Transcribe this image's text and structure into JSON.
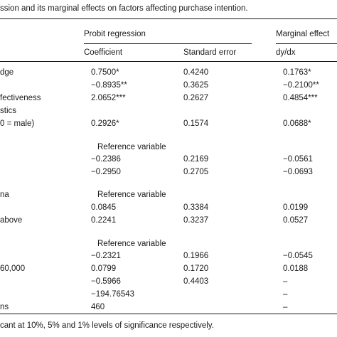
{
  "caption": "ssion and its marginal effects on factors affecting purchase intention.",
  "header": {
    "group_probit": "Probit regression",
    "group_marginal": "Marginal effect",
    "col_coefficient": "Coefficient",
    "col_std_error": "Standard error",
    "col_dydx": "dy/dx"
  },
  "rows": [
    {
      "label": "dge",
      "coef": "0.7500*",
      "se": "0.4240",
      "me": "0.1763*"
    },
    {
      "label": "",
      "coef": "−0.8935**",
      "se": "0.3625",
      "me": "−0.2100**"
    },
    {
      "label": "fectiveness",
      "coef": "2.0652***",
      "se": "0.2627",
      "me": "0.4854***"
    },
    {
      "label": "stics",
      "coef": "",
      "se": "",
      "me": ""
    },
    {
      "label": "0 = male)",
      "coef": "0.2926*",
      "se": "0.1574",
      "me": "0.0688*"
    },
    {
      "label": "",
      "ref": "Reference variable"
    },
    {
      "label": "",
      "coef": "−0.2386",
      "se": "0.2169",
      "me": "−0.0561"
    },
    {
      "label": "",
      "coef": "−0.2950",
      "se": "0.2705",
      "me": "−0.0693"
    },
    {
      "label": "na",
      "ref": "Reference variable"
    },
    {
      "label": "",
      "coef": "0.0845",
      "se": "0.3384",
      "me": "0.0199"
    },
    {
      "label": "above",
      "coef": "0.2241",
      "se": "0.3237",
      "me": "0.0527"
    },
    {
      "label": "",
      "ref": "Reference variable"
    },
    {
      "label": "",
      "coef": "−0.2321",
      "se": "0.1966",
      "me": "−0.0545"
    },
    {
      "label": "60,000",
      "coef": "0.0799",
      "se": "0.1720",
      "me": "0.0188"
    },
    {
      "label": "",
      "coef": "−0.5966",
      "se": "0.4403",
      "me": "–"
    },
    {
      "label": "",
      "coef": "−194.76543",
      "se": "",
      "me": "–"
    },
    {
      "label": "ns",
      "coef": "460",
      "se": "",
      "me": "–"
    }
  ],
  "footnote": "cant at 10%, 5% and 1% levels of significance respectively."
}
